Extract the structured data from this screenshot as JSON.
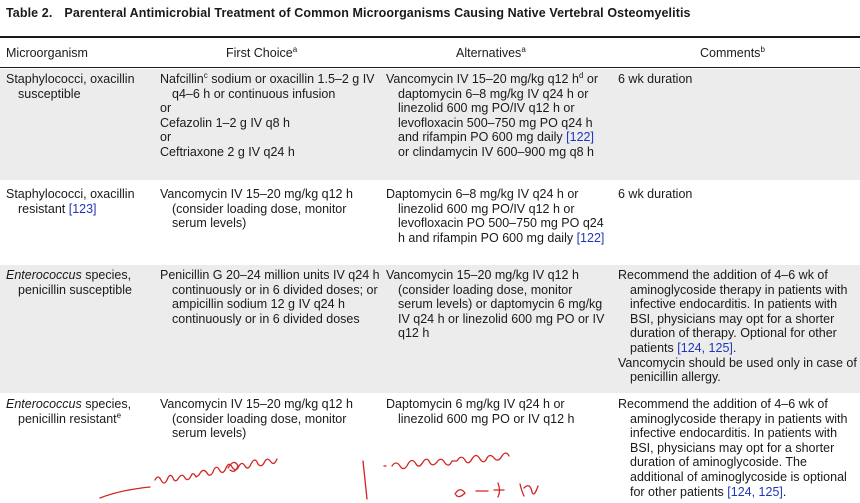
{
  "table": {
    "number": "Table 2.",
    "title": "Parenteral Antimicrobial Treatment of Common Microorganisms Causing Native Vertebral Osteomyelitis",
    "headers": {
      "microorganism": "Microorganism",
      "first_choice": "First Choice",
      "first_choice_sup": "a",
      "alternatives": "Alternatives",
      "alternatives_sup": "a",
      "comments": "Comments",
      "comments_sup": "b"
    },
    "rows": [
      {
        "microorganism": "Staphylococci, oxacillin susceptible",
        "first_choice": {
          "l1_pre": "Nafcillin",
          "l1_sup": "c",
          "l1_post": " sodium or oxacillin 1.5–2 g IV q4–6 h or continuous infusion",
          "or1": "or",
          "l2": "Cefazolin 1–2 g IV q8 h",
          "or2": "or",
          "l3": "Ceftriaxone 2 g IV q24 h"
        },
        "alternatives": {
          "pre": "Vancomycin IV 15–20 mg/kg q12 h",
          "sup": "d",
          "mid": " or daptomycin 6–8 mg/kg IV q24 h or linezolid 600 mg PO/IV q12 h or levofloxacin 500–750 mg PO q24 h and rifampin PO 600 mg daily ",
          "ref": "[122]",
          "post": " or clindamycin IV 600–900 mg q8 h"
        },
        "comments": "6 wk duration"
      },
      {
        "microorganism_pre": "Staphylococci, oxacillin resistant ",
        "microorganism_ref": "[123]",
        "first_choice": "Vancomycin IV 15–20 mg/kg q12 h (consider loading dose, monitor serum levels)",
        "alternatives_pre": "Daptomycin 6–8 mg/kg IV q24 h or linezolid 600 mg PO/IV q12 h or levofloxacin PO 500–750 mg PO q24 h and rifampin PO 600 mg daily ",
        "alternatives_ref": "[122]",
        "comments": "6 wk duration"
      },
      {
        "microorganism_ital": "Enterococcus",
        "microorganism_post": " species, penicillin susceptible",
        "first_choice": "Penicillin G 20–24 million units IV q24 h continuously or in 6 divided doses; or ampicillin sodium 12 g IV q24 h continuously or in 6 divided doses",
        "alternatives": "Vancomycin 15–20 mg/kg IV q12 h (consider loading dose, monitor serum levels) or daptomycin 6 mg/kg IV q24 h or linezolid 600 mg PO or IV q12 h",
        "comments_1_pre": "Recommend the addition of 4–6 wk of aminoglycoside therapy in patients with infective endocarditis. In patients with BSI, physicians may opt for a shorter duration of therapy. Optional for other patients ",
        "comments_1_ref": "[124, 125]",
        "comments_1_post": ".",
        "comments_2": "Vancomycin should be used only in case of penicillin allergy."
      },
      {
        "microorganism_ital": "Enterococcus",
        "microorganism_post": " species, penicillin resistant",
        "microorganism_sup": "e",
        "first_choice": "Vancomycin IV 15–20 mg/kg q12 h (consider loading dose, monitor serum levels)",
        "alternatives": "Daptomycin 6 mg/kg IV q24 h or linezolid 600 mg PO or IV q12 h",
        "comments_pre": "Recommend the addition of 4–6 wk of aminoglycoside therapy in patients with infective endocarditis. In patients with BSI, physicians may opt for a shorter duration of aminoglycoside. The additional of aminoglycoside is optional for other patients ",
        "comments_ref": "[124, 125]",
        "comments_post": "."
      }
    ]
  },
  "colors": {
    "shade": "#ececec",
    "link": "#2036b8",
    "annotation": "#d22424"
  }
}
